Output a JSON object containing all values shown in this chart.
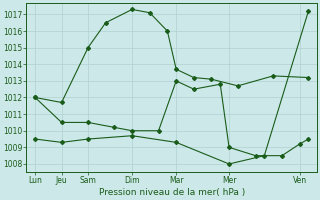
{
  "title": "Pression niveau de la mer( hPa )",
  "bg_color": "#cce8e8",
  "grid_color": "#b0d0d0",
  "line_color": "#1a5c1a",
  "ylim": [
    1007.5,
    1017.7
  ],
  "yticks": [
    1008,
    1009,
    1010,
    1011,
    1012,
    1013,
    1014,
    1015,
    1016,
    1017
  ],
  "xlabels": [
    "Lun",
    "Jeu",
    "Sam",
    "Dim",
    "Mar",
    "Mer",
    "Ven"
  ],
  "xtick_positions": [
    0,
    1.5,
    3,
    5.5,
    8,
    11,
    15
  ],
  "xmin": 0,
  "xmax": 16,
  "series1_x": [
    0,
    1.5,
    3,
    4,
    5.5,
    6.5,
    7.5,
    8.0,
    9.0,
    10.0,
    11.5,
    13.5,
    15.5
  ],
  "series1_y": [
    1012.0,
    1011.7,
    1015.0,
    1016.5,
    1017.3,
    1017.1,
    1016.0,
    1013.7,
    1013.2,
    1013.1,
    1012.7,
    1013.3,
    1013.2
  ],
  "series2_x": [
    0,
    1.5,
    3,
    4.5,
    5.5,
    7.0,
    8.0,
    9.0,
    10.5,
    11.0,
    12.5,
    14.0,
    15.0,
    15.5
  ],
  "series2_y": [
    1012.0,
    1010.5,
    1010.5,
    1010.2,
    1010.0,
    1010.0,
    1013.0,
    1012.5,
    1012.8,
    1009.0,
    1008.5,
    1008.5,
    1009.2,
    1009.5
  ],
  "series3_x": [
    0,
    1.5,
    3,
    5.5,
    8,
    11,
    13,
    15.5
  ],
  "series3_y": [
    1009.5,
    1009.3,
    1009.5,
    1009.7,
    1009.3,
    1008.0,
    1008.5,
    1017.2
  ]
}
